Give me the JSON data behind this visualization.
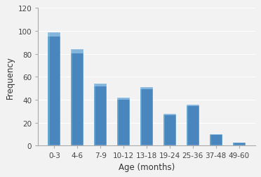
{
  "categories": [
    "0-3",
    "4-6",
    "7-9",
    "10-12",
    "13-18",
    "19-24",
    "25-36",
    "37-48",
    "49-60"
  ],
  "values": [
    99,
    84,
    54,
    42,
    51,
    28,
    36,
    10,
    3
  ],
  "bar_color_main": "#4a86be",
  "bar_color_light": "#6baed6",
  "bar_color_dark": "#2a5f9e",
  "xlabel": "Age (months)",
  "ylabel": "Frequency",
  "ylim": [
    0,
    120
  ],
  "yticks": [
    0,
    20,
    40,
    60,
    80,
    100,
    120
  ],
  "background_color": "#f2f2f2",
  "plot_bg_color": "#f2f2f2",
  "axis_fontsize": 8.5,
  "tick_fontsize": 7.5,
  "bar_width": 0.55
}
